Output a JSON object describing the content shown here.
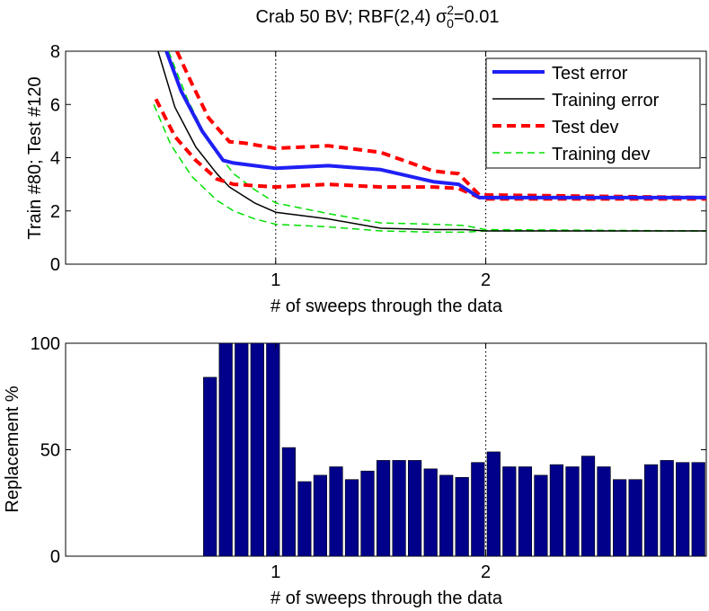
{
  "title": {
    "prefix": "Crab 50 BV; RBF(2,4) ",
    "sigma": "σ",
    "sup": "2",
    "sub": "0",
    "suffix": "=0.01"
  },
  "chart_data": [
    {
      "type": "line",
      "xlabel": "# of sweeps through the data",
      "ylabel": "Train #80; Test #120",
      "xlim": [
        0,
        3.05
      ],
      "ylim": [
        0,
        8
      ],
      "x_ticks": [
        1,
        2
      ],
      "y_ticks": [
        0,
        2,
        4,
        6,
        8
      ],
      "vertical_dotted_lines": [
        1,
        2
      ],
      "grid": false,
      "legend_position": "top-right",
      "series": [
        {
          "name": "Test error",
          "color": "#1f1ff5",
          "style": "solid-thick",
          "points": [
            [
              0.48,
              8.0
            ],
            [
              0.55,
              6.5
            ],
            [
              0.65,
              5.0
            ],
            [
              0.75,
              3.9
            ],
            [
              0.8,
              3.8
            ],
            [
              0.9,
              3.7
            ],
            [
              1.0,
              3.6
            ],
            [
              1.25,
              3.7
            ],
            [
              1.5,
              3.55
            ],
            [
              1.75,
              3.1
            ],
            [
              1.87,
              3.0
            ],
            [
              1.97,
              2.5
            ],
            [
              2.0,
              2.5
            ],
            [
              2.5,
              2.5
            ],
            [
              3.05,
              2.5
            ]
          ]
        },
        {
          "name": "Training error",
          "color": "#000000",
          "style": "solid-thin",
          "points": [
            [
              0.44,
              8.0
            ],
            [
              0.52,
              5.9
            ],
            [
              0.62,
              4.4
            ],
            [
              0.72,
              3.4
            ],
            [
              0.78,
              2.9
            ],
            [
              0.9,
              2.3
            ],
            [
              1.0,
              1.95
            ],
            [
              1.25,
              1.7
            ],
            [
              1.5,
              1.35
            ],
            [
              1.75,
              1.3
            ],
            [
              1.9,
              1.3
            ],
            [
              2.0,
              1.25
            ],
            [
              3.05,
              1.25
            ]
          ]
        },
        {
          "name": "Test dev",
          "color": "#ff0000",
          "style": "dashed-thick",
          "points_upper": [
            [
              0.53,
              8.0
            ],
            [
              0.6,
              6.8
            ],
            [
              0.68,
              5.5
            ],
            [
              0.78,
              4.6
            ],
            [
              0.85,
              4.55
            ],
            [
              1.0,
              4.35
            ],
            [
              1.25,
              4.45
            ],
            [
              1.5,
              4.2
            ],
            [
              1.75,
              3.5
            ],
            [
              1.87,
              3.4
            ],
            [
              1.97,
              2.6
            ],
            [
              2.0,
              2.6
            ],
            [
              3.05,
              2.5
            ]
          ],
          "points_lower": [
            [
              0.43,
              6.2
            ],
            [
              0.52,
              4.8
            ],
            [
              0.62,
              3.9
            ],
            [
              0.72,
              3.2
            ],
            [
              0.8,
              3.0
            ],
            [
              1.0,
              2.9
            ],
            [
              1.25,
              3.0
            ],
            [
              1.5,
              2.9
            ],
            [
              1.75,
              2.9
            ],
            [
              1.87,
              2.85
            ],
            [
              1.97,
              2.5
            ],
            [
              2.0,
              2.45
            ],
            [
              3.05,
              2.45
            ]
          ]
        },
        {
          "name": "Training dev",
          "color": "#00e000",
          "style": "dashed-thin",
          "points_upper": [
            [
              0.49,
              8.0
            ],
            [
              0.58,
              6.2
            ],
            [
              0.68,
              4.6
            ],
            [
              0.8,
              3.4
            ],
            [
              0.9,
              2.8
            ],
            [
              1.0,
              2.3
            ],
            [
              1.25,
              1.9
            ],
            [
              1.5,
              1.55
            ],
            [
              1.75,
              1.5
            ],
            [
              1.9,
              1.45
            ],
            [
              2.0,
              1.3
            ],
            [
              3.05,
              1.25
            ]
          ],
          "points_lower": [
            [
              0.42,
              6.0
            ],
            [
              0.5,
              4.5
            ],
            [
              0.6,
              3.3
            ],
            [
              0.72,
              2.4
            ],
            [
              0.8,
              2.0
            ],
            [
              0.9,
              1.7
            ],
            [
              1.0,
              1.5
            ],
            [
              1.25,
              1.4
            ],
            [
              1.5,
              1.25
            ],
            [
              1.75,
              1.2
            ],
            [
              1.9,
              1.2
            ],
            [
              2.0,
              1.25
            ],
            [
              3.05,
              1.25
            ]
          ]
        }
      ]
    },
    {
      "type": "bar",
      "xlabel": "# of sweeps through the data",
      "ylabel": "Replacement %",
      "xlim": [
        0,
        3.05
      ],
      "ylim": [
        0,
        100
      ],
      "x_ticks": [
        1,
        2
      ],
      "y_ticks": [
        0,
        50,
        100
      ],
      "vertical_dotted_lines": [
        1,
        2
      ],
      "bar_color": "#00008b",
      "bar_width": 0.0625,
      "x": [
        0.6875,
        0.7625,
        0.8375,
        0.9125,
        0.9875,
        1.0625,
        1.1375,
        1.2125,
        1.2875,
        1.3625,
        1.4375,
        1.5125,
        1.5875,
        1.6625,
        1.7375,
        1.8125,
        1.8875,
        1.9625,
        2.0375,
        2.1125,
        2.1875,
        2.2625,
        2.3375,
        2.4125,
        2.4875,
        2.5625,
        2.6375,
        2.7125,
        2.7875,
        2.8625,
        2.9375,
        3.0125
      ],
      "values": [
        84,
        100,
        100,
        100,
        100,
        51,
        35,
        38,
        42,
        36,
        40,
        45,
        45,
        45,
        41,
        38,
        37,
        44,
        49,
        42,
        42,
        38,
        43,
        42,
        47,
        42,
        36,
        36,
        43,
        45,
        44,
        44
      ]
    }
  ]
}
